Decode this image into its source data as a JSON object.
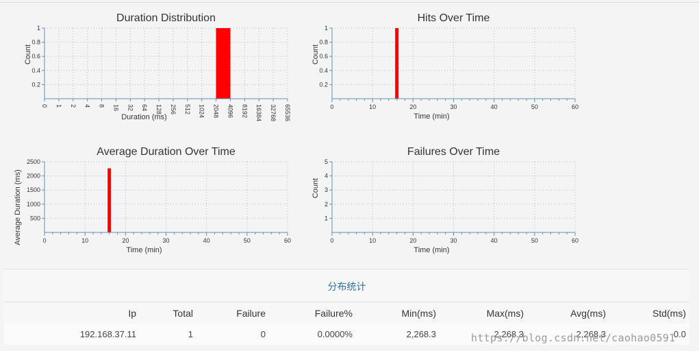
{
  "chart_data": [
    {
      "id": "duration",
      "type": "bar",
      "title": "Duration Distribution",
      "xlabel": "Duration (ms)",
      "ylabel": "Count",
      "x_scale": "log2",
      "xlim": [
        0,
        65536
      ],
      "x_ticks": [
        "0",
        "1",
        "2",
        "4",
        "8",
        "16",
        "32",
        "64",
        "128",
        "256",
        "512",
        "1024",
        "2048",
        "4096",
        "8192",
        "16384",
        "32768",
        "65536"
      ],
      "ylim": [
        0,
        1
      ],
      "y_ticks": [
        "0.2",
        "0.4",
        "0.6",
        "0.8",
        "1"
      ],
      "bars": [
        {
          "x_start": "2048",
          "x_end": "4096",
          "value": 1
        }
      ],
      "grid": true
    },
    {
      "id": "hits",
      "type": "bar",
      "title": "Hits Over Time",
      "xlabel": "Time (min)",
      "ylabel": "Count",
      "xlim": [
        0,
        60
      ],
      "x_ticks": [
        "0",
        "10",
        "20",
        "30",
        "40",
        "50",
        "60"
      ],
      "ylim": [
        0,
        1
      ],
      "y_ticks": [
        "0.2",
        "0.4",
        "0.6",
        "0.8",
        "1"
      ],
      "bars": [
        {
          "x": 16,
          "value": 1
        }
      ],
      "grid": true
    },
    {
      "id": "avgdur",
      "type": "bar",
      "title": "Average Duration Over Time",
      "xlabel": "Time (min)",
      "ylabel": "Average Duration (ms)",
      "xlim": [
        0,
        60
      ],
      "x_ticks": [
        "0",
        "10",
        "20",
        "30",
        "40",
        "50",
        "60"
      ],
      "ylim": [
        0,
        2500
      ],
      "y_ticks": [
        "500",
        "1000",
        "1500",
        "2000",
        "2500"
      ],
      "bars": [
        {
          "x": 16,
          "value": 2268.3
        }
      ],
      "grid": true
    },
    {
      "id": "failures",
      "type": "bar",
      "title": "Failures Over Time",
      "xlabel": "Time (min)",
      "ylabel": "Count",
      "xlim": [
        0,
        60
      ],
      "x_ticks": [
        "0",
        "10",
        "20",
        "30",
        "40",
        "50",
        "60"
      ],
      "ylim": [
        0,
        5
      ],
      "y_ticks": [
        "1",
        "2",
        "3",
        "4",
        "5"
      ],
      "bars": [],
      "grid": true
    }
  ],
  "colors": {
    "bar": "#ff0000",
    "axis": "#5b8fc0",
    "grid": "#b5b5b5",
    "title": "#2f6f9f"
  },
  "stats": {
    "title": "分布统计",
    "headers": [
      "Ip",
      "Total",
      "Failure",
      "Failure%",
      "Min(ms)",
      "Max(ms)",
      "Avg(ms)",
      "Std(ms)"
    ],
    "row": [
      "192.168.37.11",
      "1",
      "0",
      "0.0000%",
      "2,268.3",
      "2,268.3",
      "2,268.3",
      "0.0"
    ]
  },
  "watermark": "https://blog.csdn.net/caohao0591"
}
